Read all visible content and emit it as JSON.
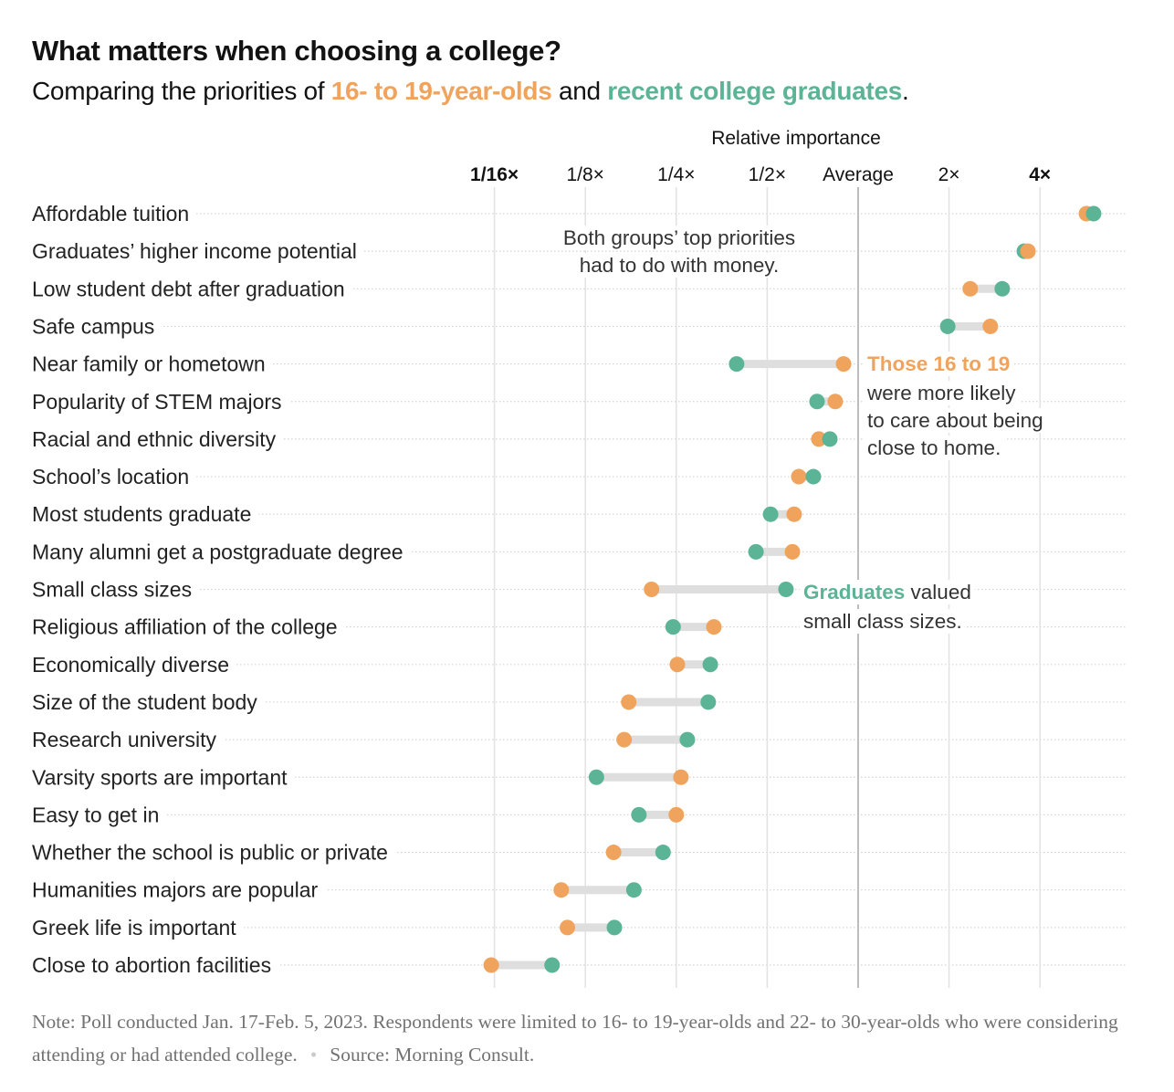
{
  "title": "What matters when choosing a college?",
  "subtitle": {
    "prefix": "Comparing the priorities of ",
    "group_a": "16- to 19-year-olds",
    "middle": " and ",
    "group_b": "recent college graduates",
    "suffix": "."
  },
  "colors": {
    "teens": "#f0a35c",
    "graduates": "#5cb496",
    "connector": "#dedede",
    "grid": "#e2e2e2",
    "average_line": "#bdbdbd"
  },
  "chart_data": {
    "type": "dot-plot",
    "title": "What matters when choosing a college?",
    "xlabel": "Relative importance",
    "x_scale": "log2",
    "xlim": [
      0.0625,
      6.5
    ],
    "grid": true,
    "ticks": [
      {
        "value": 0.0625,
        "label": "1/16×",
        "bold": true
      },
      {
        "value": 0.125,
        "label": "1/8×",
        "bold": false
      },
      {
        "value": 0.25,
        "label": "1/4×",
        "bold": false
      },
      {
        "value": 0.5,
        "label": "1/2×",
        "bold": false
      },
      {
        "value": 1,
        "label": "Average",
        "bold": false
      },
      {
        "value": 2,
        "label": "2×",
        "bold": false
      },
      {
        "value": 4,
        "label": "4×",
        "bold": true
      }
    ],
    "categories": [
      "Affordable tuition",
      "Graduates’ higher income potential",
      "Low student debt after graduation",
      "Safe campus",
      "Near family or hometown",
      "Popularity of STEM majors",
      "Racial and ethnic diversity",
      "School’s location",
      "Most students graduate",
      "Many alumni get a postgraduate degree",
      "Small class sizes",
      "Religious affiliation of the college",
      "Economically diverse",
      "Size of the student body",
      "Research university",
      "Varsity sports are important",
      "Easy to get in",
      "Whether the school is public or private",
      "Humanities majors are popular",
      "Greek life is important",
      "Close to abortion facilities"
    ],
    "series": [
      {
        "name": "16- to 19-year-olds",
        "color": "#f0a35c",
        "values": [
          5.7,
          3.65,
          2.35,
          2.74,
          0.895,
          0.84,
          0.741,
          0.636,
          0.614,
          0.606,
          0.207,
          0.333,
          0.252,
          0.174,
          0.168,
          0.259,
          0.25,
          0.155,
          0.104,
          0.109,
          0.061
        ]
      },
      {
        "name": "recent college graduates",
        "color": "#5cb496",
        "values": [
          6.02,
          3.55,
          3.0,
          1.98,
          0.396,
          0.731,
          0.806,
          0.711,
          0.513,
          0.459,
          0.577,
          0.244,
          0.324,
          0.319,
          0.272,
          0.136,
          0.188,
          0.226,
          0.181,
          0.156,
          0.097
        ]
      }
    ],
    "annotations": [
      {
        "lines": [
          "Both groups’ top priorities",
          "had to do with money."
        ]
      },
      {
        "highlight": "Those 16 to 19",
        "lines": [
          "were more likely",
          "to care about being",
          "close to home."
        ]
      },
      {
        "highlight": "Graduates",
        "rest": " valued",
        "lines": [
          "small class sizes."
        ]
      }
    ]
  },
  "footer": {
    "note": "Note: Poll conducted Jan. 17-Feb. 5, 2023. Respondents were limited to 16- to 19-year-olds and 22- to 30-year-olds who were considering attending or had attended college.",
    "separator": "•",
    "source": "Source: Morning Consult."
  }
}
